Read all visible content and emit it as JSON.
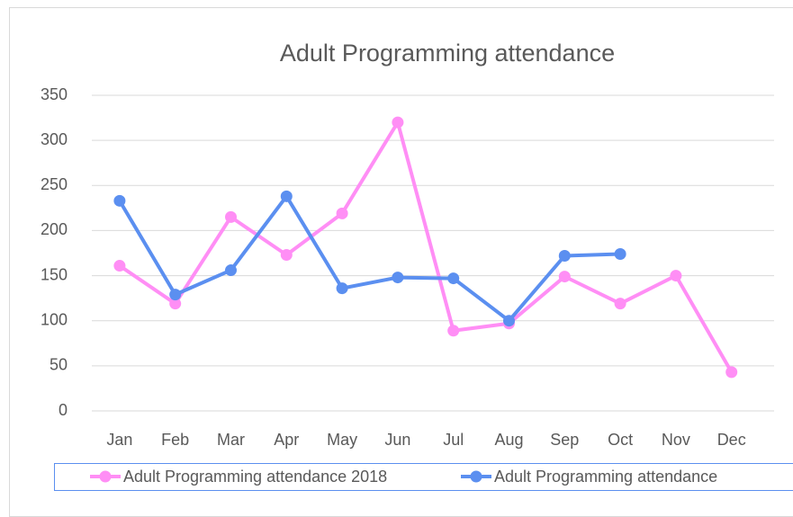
{
  "chart_data": {
    "type": "line",
    "title": "Adult Programming attendance",
    "categories": [
      "Jan",
      "Feb",
      "Mar",
      "Apr",
      "May",
      "Jun",
      "Jul",
      "Aug",
      "Sep",
      "Oct",
      "Nov",
      "Dec"
    ],
    "series": [
      {
        "name": "Adult Programming attendance 2018",
        "color": "#ff8ef5",
        "values": [
          161,
          119,
          215,
          173,
          219,
          320,
          89,
          97,
          149,
          119,
          150,
          43
        ]
      },
      {
        "name": "Adult Programming attendance",
        "color": "#5b8ff0",
        "values": [
          233,
          129,
          156,
          238,
          136,
          148,
          147,
          100,
          172,
          174,
          null,
          null
        ]
      }
    ],
    "ylim": [
      0,
      350
    ],
    "yticks": [
      0,
      50,
      100,
      150,
      200,
      250,
      300,
      350
    ],
    "grid": true,
    "legend": "bottom"
  }
}
